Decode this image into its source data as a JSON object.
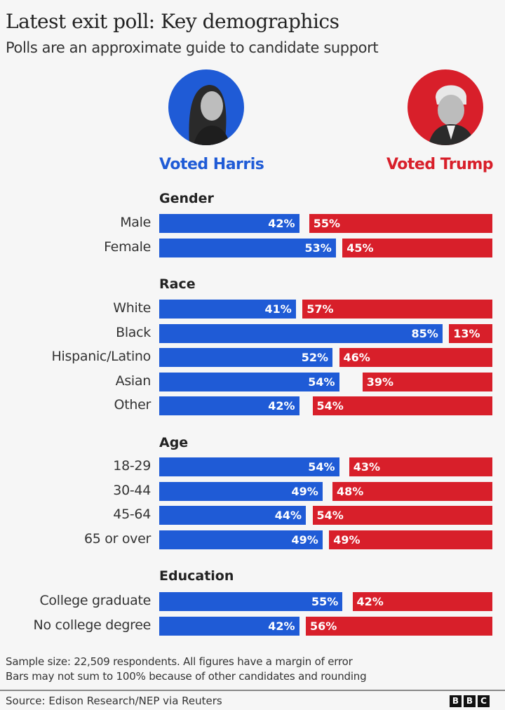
{
  "title": "Latest exit poll: Key demographics",
  "subtitle": "Polls are an approximate guide to candidate support",
  "candidates": {
    "harris": {
      "label": "Voted Harris",
      "color": "#1f5bd6"
    },
    "trump": {
      "label": "Voted Trump",
      "color": "#d81f2a"
    }
  },
  "chart_data": {
    "type": "bar",
    "orientation": "horizontal-diverging",
    "xlim": [
      0,
      100
    ],
    "unit": "%",
    "groups": [
      {
        "name": "Gender",
        "rows": [
          {
            "label": "Male",
            "harris": 42,
            "trump": 55
          },
          {
            "label": "Female",
            "harris": 53,
            "trump": 45
          }
        ]
      },
      {
        "name": "Race",
        "rows": [
          {
            "label": "White",
            "harris": 41,
            "trump": 57
          },
          {
            "label": "Black",
            "harris": 85,
            "trump": 13
          },
          {
            "label": "Hispanic/Latino",
            "harris": 52,
            "trump": 46
          },
          {
            "label": "Asian",
            "harris": 54,
            "trump": 39
          },
          {
            "label": "Other",
            "harris": 42,
            "trump": 54
          }
        ]
      },
      {
        "name": "Age",
        "rows": [
          {
            "label": "18-29",
            "harris": 54,
            "trump": 43
          },
          {
            "label": "30-44",
            "harris": 49,
            "trump": 48
          },
          {
            "label": "45-64",
            "harris": 44,
            "trump": 54
          },
          {
            "label": "65 or over",
            "harris": 49,
            "trump": 49
          }
        ]
      },
      {
        "name": "Education",
        "rows": [
          {
            "label": "College graduate",
            "harris": 55,
            "trump": 42
          },
          {
            "label": "No college degree",
            "harris": 42,
            "trump": 56
          }
        ]
      }
    ]
  },
  "notes": [
    "Sample size: 22,509 respondents. All figures have a margin of error",
    "Bars may not sum to 100% because of other candidates and rounding"
  ],
  "source": "Source: Edison Research/NEP via Reuters",
  "logo": "BBC"
}
